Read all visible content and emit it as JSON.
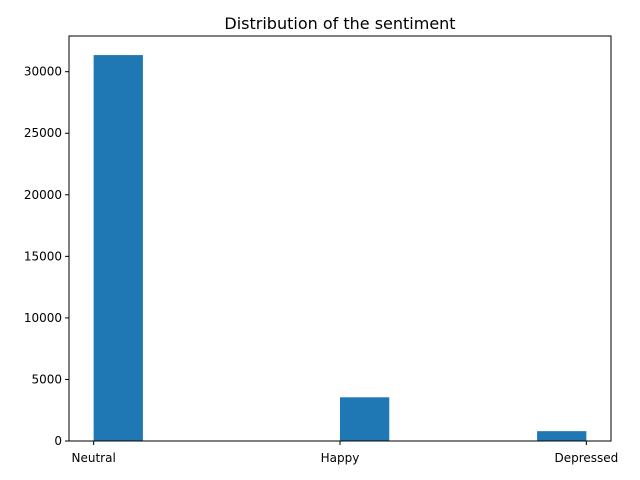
{
  "chart_data": {
    "type": "bar",
    "title": "Distribution of the sentiment",
    "xlabel": "",
    "ylabel": "",
    "x_tick_labels": [
      {
        "label": "Neutral",
        "value": 0
      },
      {
        "label": "Happy",
        "value": 1
      },
      {
        "label": "Depressed",
        "value": 2
      }
    ],
    "x_range": [
      -0.1,
      2.1
    ],
    "bins": [
      {
        "start": 0.0,
        "end": 0.2,
        "value": 31350
      },
      {
        "start": 0.2,
        "end": 0.4,
        "value": 0
      },
      {
        "start": 0.4,
        "end": 0.6,
        "value": 0
      },
      {
        "start": 0.6,
        "end": 0.8,
        "value": 0
      },
      {
        "start": 0.8,
        "end": 1.0,
        "value": 0
      },
      {
        "start": 1.0,
        "end": 1.2,
        "value": 3550
      },
      {
        "start": 1.2,
        "end": 1.4,
        "value": 0
      },
      {
        "start": 1.4,
        "end": 1.6,
        "value": 0
      },
      {
        "start": 1.6,
        "end": 1.8,
        "value": 0
      },
      {
        "start": 1.8,
        "end": 2.0,
        "value": 800
      }
    ],
    "ylim": [
      0,
      32900
    ],
    "y_ticks": [
      0,
      5000,
      10000,
      15000,
      20000,
      25000,
      30000
    ],
    "grid": false,
    "legend": "none",
    "bar_color": "#1f77b4"
  }
}
